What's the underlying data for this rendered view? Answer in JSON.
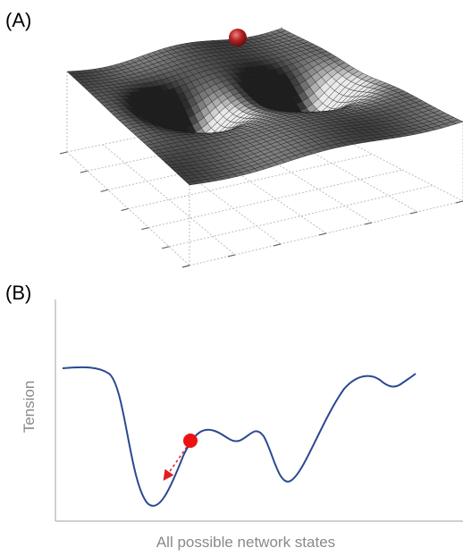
{
  "panel_a": {
    "label": "(A)"
  },
  "panel_b": {
    "label": "(B)",
    "y_axis_label": "Tension",
    "x_axis_label": "All possible network states"
  }
}
